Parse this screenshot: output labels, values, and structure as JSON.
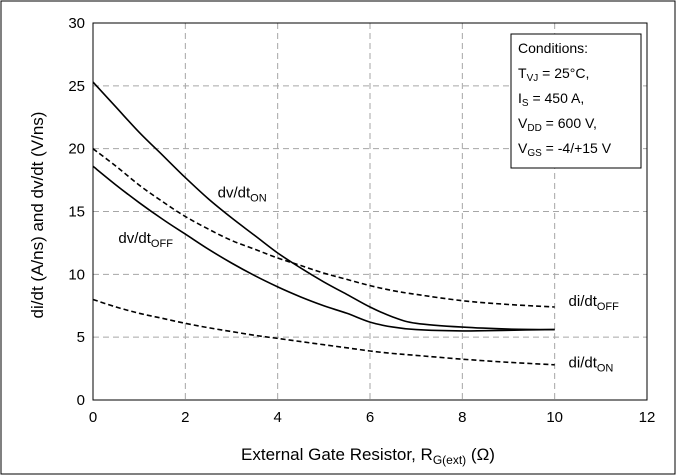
{
  "chart_data": {
    "type": "line",
    "title": "",
    "xlabel": {
      "main": "External Gate Resistor, R",
      "sub": "G(ext)",
      "tail": " (Ω)"
    },
    "ylabel": "di/dt (A/ns) and dv/dt (V/ns)",
    "xlim": [
      0,
      12
    ],
    "ylim": [
      0,
      30
    ],
    "xticks": [
      0,
      2,
      4,
      6,
      8,
      10,
      12
    ],
    "yticks": [
      0,
      5,
      10,
      15,
      20,
      25,
      30
    ],
    "grid": true,
    "conditions": {
      "title": "Conditions:",
      "lines": [
        {
          "main": "T",
          "sub": "VJ",
          "tail": " = 25°C,"
        },
        {
          "main": "I",
          "sub": "S",
          "tail": " = 450 A,"
        },
        {
          "main": "V",
          "sub": "DD",
          "tail": " = 600 V,"
        },
        {
          "main": "V",
          "sub": "GS",
          "tail": " = -4/+15 V"
        }
      ],
      "placement": "top-right"
    },
    "series": [
      {
        "label": {
          "main": "dv/dt",
          "sub": "ON"
        },
        "style": "solid",
        "label_at": [
          2.7,
          16.1
        ],
        "x": [
          0,
          0.5,
          1,
          1.5,
          2,
          2.5,
          3,
          3.5,
          4,
          4.5,
          5,
          5.5,
          6,
          6.5,
          7,
          8,
          9,
          10
        ],
        "y": [
          25.3,
          23.3,
          21.3,
          19.5,
          17.7,
          16.0,
          14.5,
          13.1,
          11.7,
          10.5,
          9.4,
          8.4,
          7.4,
          6.6,
          6.1,
          5.8,
          5.65,
          5.6
        ]
      },
      {
        "label": {
          "main": "dv/dt",
          "sub": "OFF"
        },
        "style": "solid",
        "label_at": [
          0.55,
          12.5
        ],
        "x": [
          0,
          0.5,
          1,
          1.5,
          2,
          2.5,
          3,
          3.5,
          4,
          4.5,
          5,
          5.5,
          6,
          6.5,
          7,
          8,
          9,
          10
        ],
        "y": [
          18.6,
          17.1,
          15.7,
          14.4,
          13.2,
          12.0,
          10.9,
          9.9,
          9.0,
          8.2,
          7.5,
          6.9,
          6.2,
          5.8,
          5.6,
          5.5,
          5.55,
          5.6
        ]
      },
      {
        "label": {
          "main": "di/dt",
          "sub": "OFF"
        },
        "style": "dashed",
        "label_at": [
          10.3,
          7.5
        ],
        "x": [
          0,
          0.5,
          1,
          1.5,
          2,
          2.5,
          3,
          3.5,
          4,
          4.5,
          5,
          5.5,
          6,
          6.5,
          7,
          8,
          9,
          10
        ],
        "y": [
          20.0,
          18.6,
          17.1,
          15.8,
          14.6,
          13.6,
          12.7,
          12.0,
          11.3,
          10.7,
          10.1,
          9.6,
          9.1,
          8.7,
          8.4,
          7.9,
          7.6,
          7.4
        ]
      },
      {
        "label": {
          "main": "di/dt",
          "sub": "ON"
        },
        "style": "dashed",
        "label_at": [
          10.3,
          2.6
        ],
        "x": [
          0,
          0.5,
          1,
          1.5,
          2,
          2.5,
          3,
          3.5,
          4,
          4.5,
          5,
          5.5,
          6,
          6.5,
          7,
          8,
          9,
          10
        ],
        "y": [
          8.0,
          7.4,
          6.9,
          6.5,
          6.1,
          5.75,
          5.45,
          5.15,
          4.9,
          4.65,
          4.4,
          4.15,
          3.9,
          3.7,
          3.55,
          3.25,
          3.0,
          2.8
        ]
      }
    ]
  }
}
